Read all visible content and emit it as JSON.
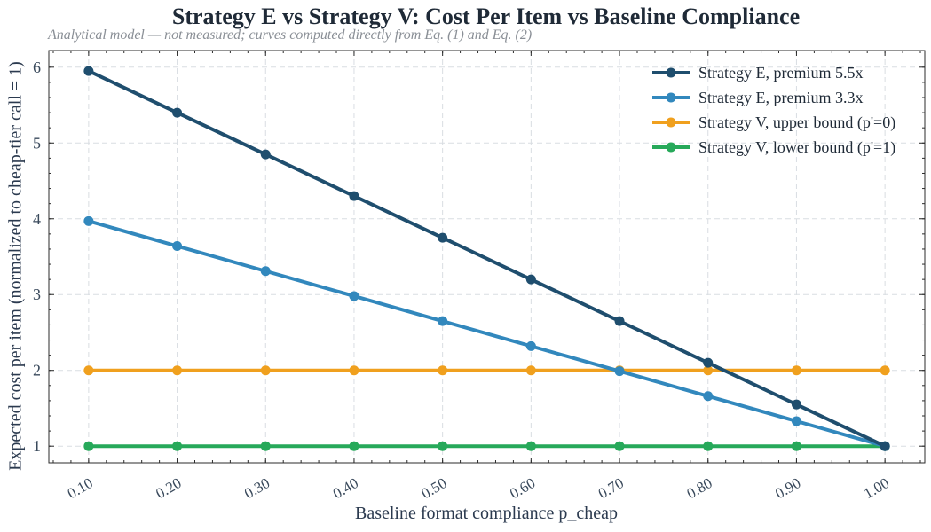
{
  "chart_data": {
    "type": "line",
    "title": "Strategy E vs Strategy V: Cost Per Item vs Baseline Compliance",
    "subtitle": "Analytical model — not measured; curves computed directly from Eq. (1) and Eq. (2)",
    "xlabel": "Baseline format compliance  p_cheap",
    "ylabel": "Expected cost per item (normalized to cheap-tier call = 1)",
    "x": [
      0.1,
      0.2,
      0.3,
      0.4,
      0.5,
      0.6,
      0.7,
      0.8,
      0.9,
      1.0
    ],
    "x_tick_labels": [
      "0.10",
      "0.20",
      "0.30",
      "0.40",
      "0.50",
      "0.60",
      "0.70",
      "0.80",
      "0.90",
      "1.00"
    ],
    "y_ticks": [
      1,
      2,
      3,
      4,
      5,
      6
    ],
    "xlim": [
      0.055,
      1.045
    ],
    "ylim": [
      0.78,
      6.22
    ],
    "grid": true,
    "legend_position": "top-right",
    "series": [
      {
        "name": "Strategy E, premium 5.5x",
        "color": "#1f4e6e",
        "values": [
          5.95,
          5.4,
          4.85,
          4.3,
          3.75,
          3.2,
          2.65,
          2.1,
          1.55,
          1.0
        ]
      },
      {
        "name": "Strategy E, premium 3.3x",
        "color": "#3288bd",
        "values": [
          3.97,
          3.64,
          3.31,
          2.98,
          2.65,
          2.32,
          1.99,
          1.66,
          1.33,
          1.0
        ]
      },
      {
        "name": "Strategy V, upper bound (p'=0)",
        "color": "#f0a01e",
        "values": [
          2,
          2,
          2,
          2,
          2,
          2,
          2,
          2,
          2,
          2
        ]
      },
      {
        "name": "Strategy V, lower bound (p'=1)",
        "color": "#27a95a",
        "values": [
          1,
          1,
          1,
          1,
          1,
          1,
          1,
          1,
          1,
          1
        ]
      }
    ]
  }
}
